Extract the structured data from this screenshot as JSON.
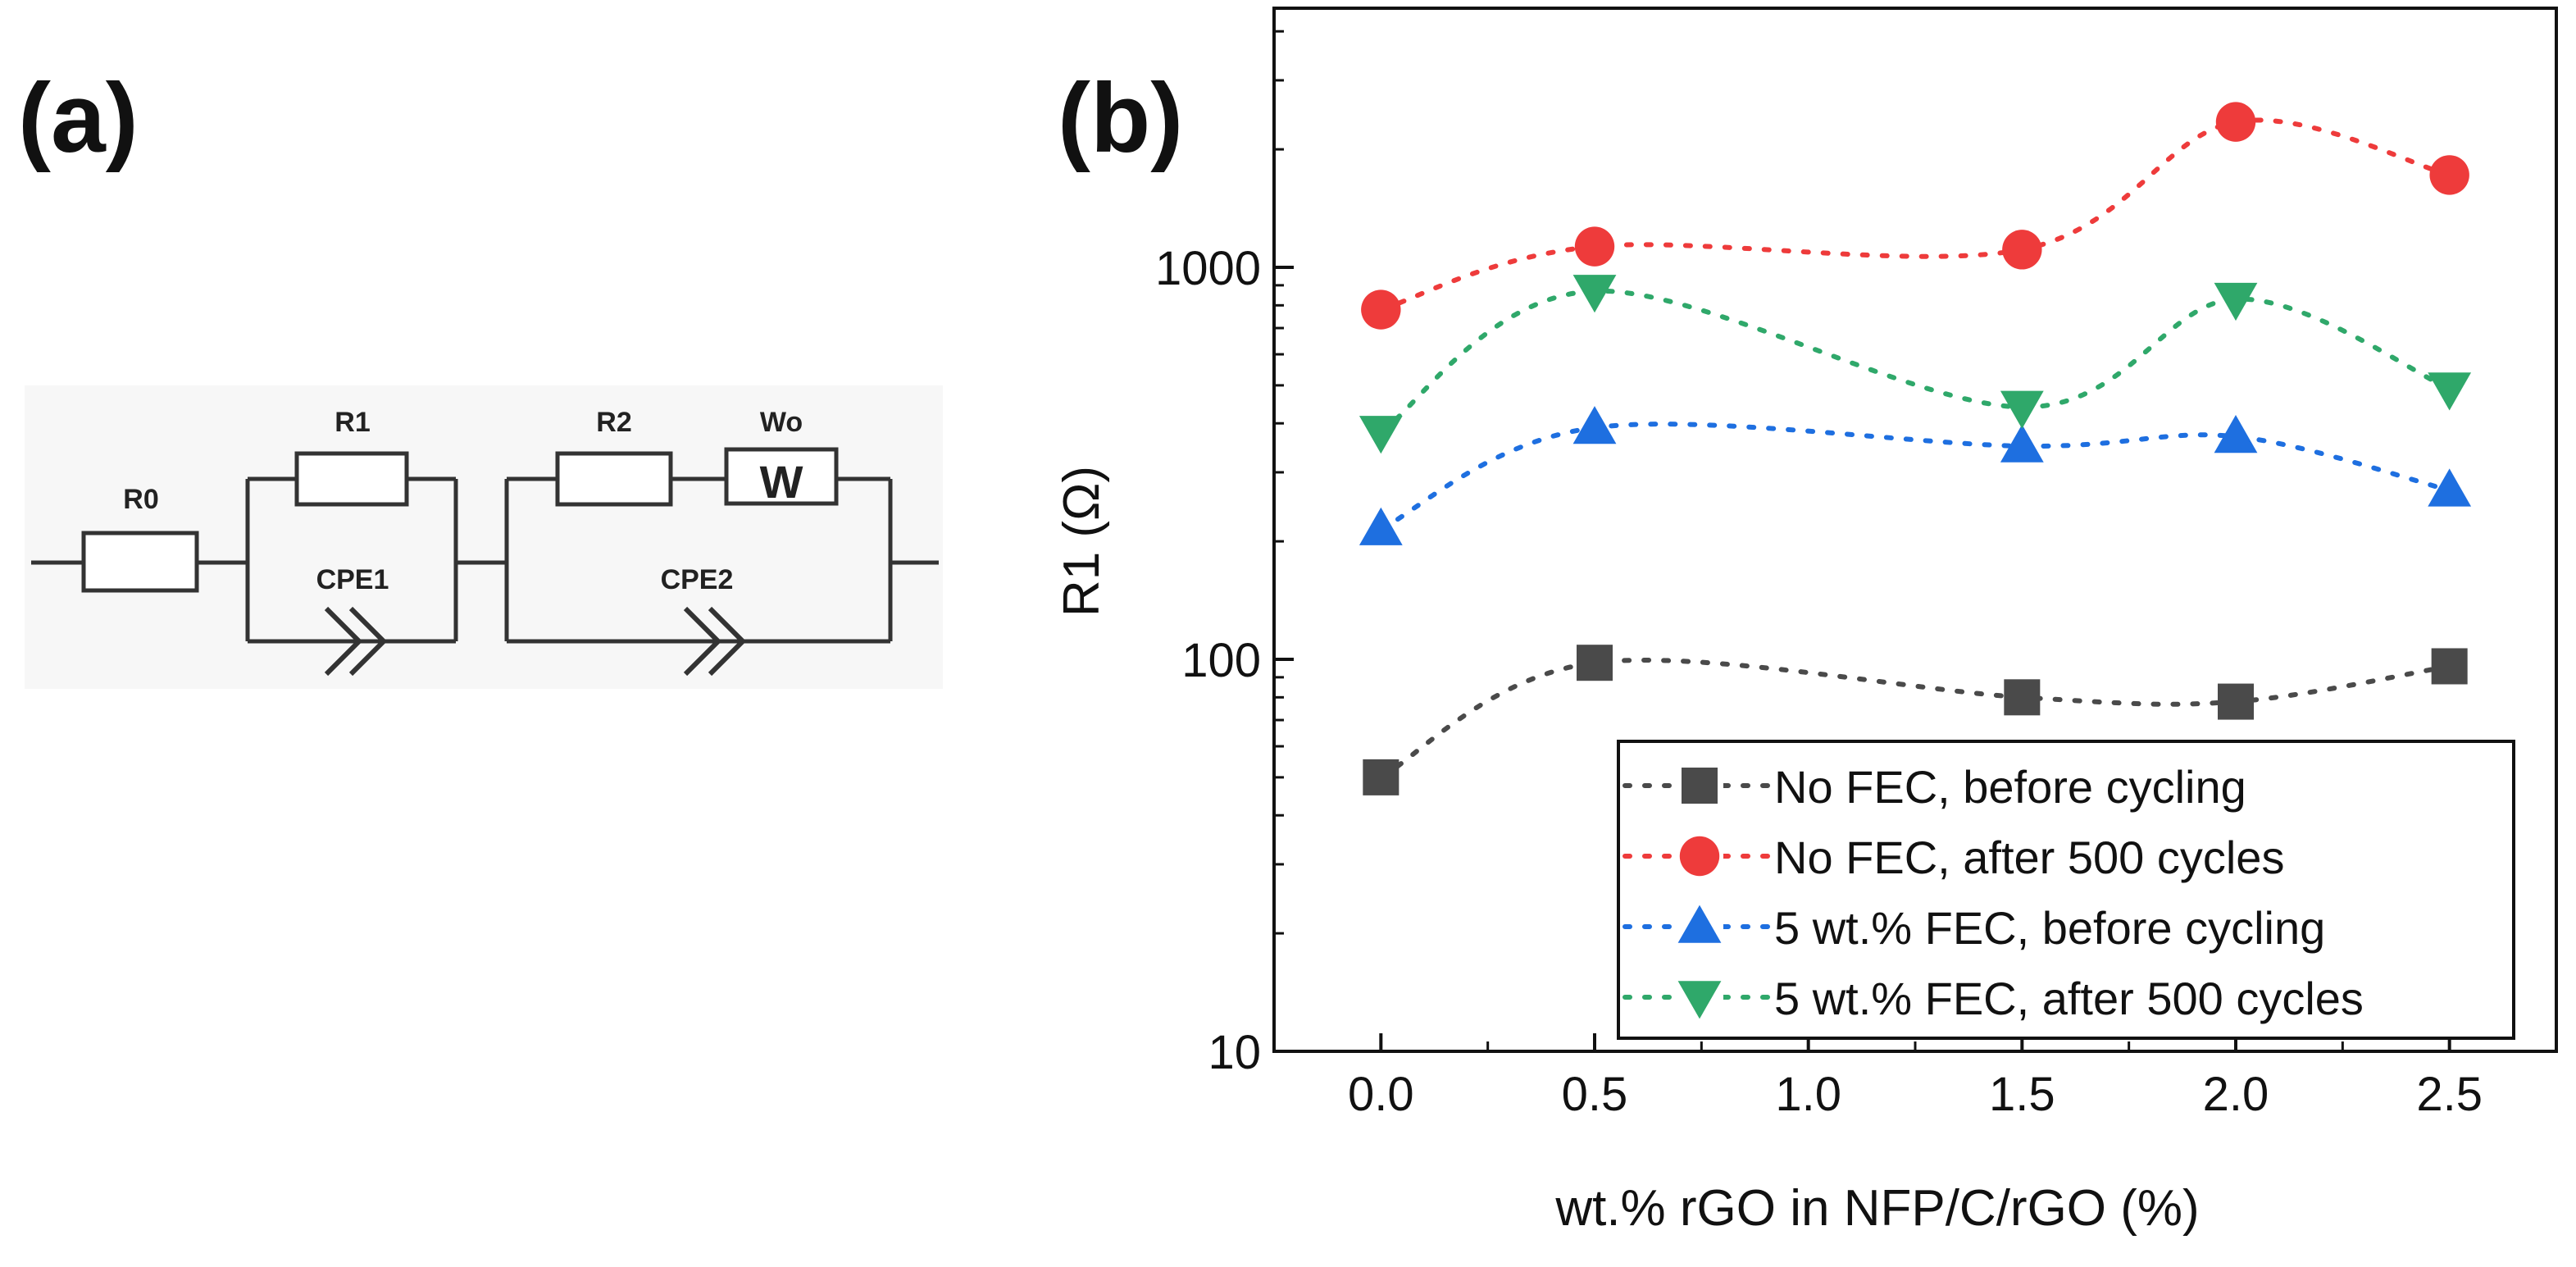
{
  "panel_a": {
    "label": "(a)",
    "circuit": {
      "components": {
        "r0": "R0",
        "r1": "R1",
        "cpe1": "CPE1",
        "r2": "R2",
        "wo": "Wo",
        "w_symbol": "W",
        "cpe2": "CPE2"
      }
    }
  },
  "panel_b": {
    "label": "(b)"
  },
  "colors": {
    "no_fec_before": "#4a4a4a",
    "no_fec_after": "#ee3b3b",
    "fec_before": "#1e6fe0",
    "fec_after": "#2fa86a"
  },
  "chart_data": {
    "type": "line",
    "title": "",
    "xlabel": "wt.% rGO in NFP/C/rGO (%)",
    "ylabel": "R1 (Ω)",
    "yscale": "log",
    "xlim": [
      -0.25,
      2.75
    ],
    "ylim": [
      10,
      5000
    ],
    "x_ticks": [
      0.0,
      0.5,
      1.0,
      1.5,
      2.0,
      2.5
    ],
    "x_tick_labels": [
      "0.0",
      "0.5",
      "1.0",
      "1.5",
      "2.0",
      "2.5"
    ],
    "y_ticks": [
      10,
      100,
      1000
    ],
    "y_tick_labels": [
      "10",
      "100",
      "1000"
    ],
    "legend_position": "bottom-right",
    "x": [
      0.0,
      0.5,
      1.5,
      2.0,
      2.5
    ],
    "series": [
      {
        "name": "No FEC, before cycling",
        "marker": "square",
        "color_key": "no_fec_before",
        "values": [
          50,
          98,
          80,
          78,
          96
        ]
      },
      {
        "name": "No FEC, after 500 cycles",
        "marker": "circle",
        "color_key": "no_fec_after",
        "values": [
          780,
          1130,
          1110,
          2350,
          1720
        ]
      },
      {
        "name": "5 wt.% FEC, before cycling",
        "marker": "triangle-up",
        "color_key": "fec_before",
        "values": [
          215,
          390,
          350,
          370,
          270
        ]
      },
      {
        "name": "5 wt.% FEC, after 500 cycles",
        "marker": "triangle-down",
        "color_key": "fec_after",
        "values": [
          380,
          870,
          440,
          830,
          490
        ]
      }
    ]
  }
}
